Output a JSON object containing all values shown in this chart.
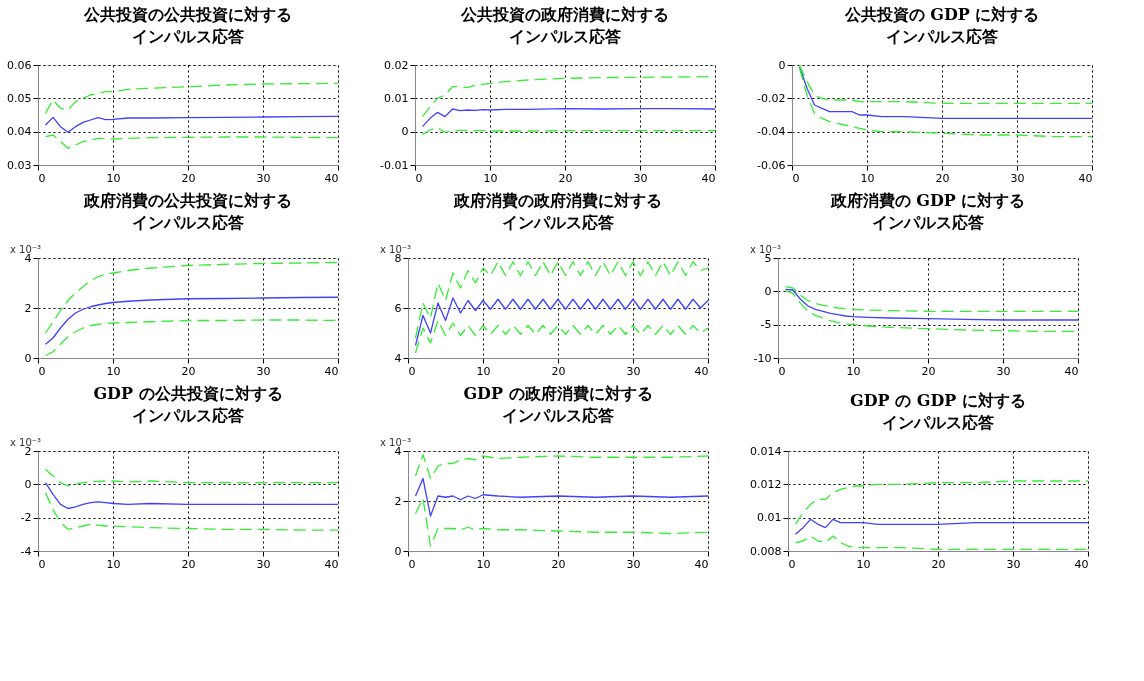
{
  "chart_data": [
    {
      "type": "line",
      "title": "公共投資の公共投資に対するインパルス応答",
      "x": [
        1,
        2,
        3,
        4,
        5,
        6,
        7,
        8,
        9,
        10,
        12,
        15,
        20,
        25,
        30,
        35,
        40
      ],
      "xlim": [
        0,
        40
      ],
      "xticks": [
        0,
        10,
        20,
        30,
        40
      ],
      "ylim": [
        0.03,
        0.06
      ],
      "yticks": [
        0.03,
        0.04,
        0.05,
        0.06
      ],
      "grid": true,
      "series": [
        {
          "color": "#4040ff",
          "line_style": "solid",
          "values": [
            0.042,
            0.0443,
            0.0415,
            0.0398,
            0.0415,
            0.0428,
            0.0435,
            0.0442,
            0.0436,
            0.0437,
            0.0441,
            0.0441,
            0.0442,
            0.0443,
            0.0444,
            0.0445,
            0.0446
          ]
        },
        {
          "color": "#33ee33",
          "line_style": "dashed",
          "values": [
            0.0455,
            0.0495,
            0.047,
            0.0465,
            0.049,
            0.05,
            0.051,
            0.0515,
            0.052,
            0.052,
            0.0527,
            0.053,
            0.0535,
            0.054,
            0.0543,
            0.0544,
            0.0545
          ]
        },
        {
          "color": "#33ee33",
          "line_style": "dashed",
          "values": [
            0.0385,
            0.039,
            0.037,
            0.035,
            0.036,
            0.037,
            0.0375,
            0.038,
            0.038,
            0.0378,
            0.038,
            0.0382,
            0.0383,
            0.0384,
            0.0384,
            0.0383,
            0.0382
          ]
        }
      ]
    },
    {
      "type": "line",
      "title": "公共投資の政府消費に対するインパルス応答",
      "x": [
        1,
        2,
        3,
        4,
        5,
        6,
        7,
        8,
        9,
        10,
        12,
        15,
        20,
        25,
        30,
        35,
        40
      ],
      "xlim": [
        0,
        40
      ],
      "xticks": [
        0,
        10,
        20,
        30,
        40
      ],
      "ylim": [
        -0.01,
        0.02
      ],
      "yticks": [
        -0.01,
        0,
        0.01,
        0.02
      ],
      "grid": true,
      "series": [
        {
          "color": "#4040ff",
          "line_style": "solid",
          "values": [
            0.0015,
            0.004,
            0.0058,
            0.0045,
            0.0068,
            0.0063,
            0.0065,
            0.0064,
            0.0066,
            0.0065,
            0.0067,
            0.0067,
            0.0069,
            0.0068,
            0.0069,
            0.0069,
            0.0068
          ]
        },
        {
          "color": "#33ee33",
          "line_style": "dashed",
          "values": [
            0.0045,
            0.0075,
            0.01,
            0.011,
            0.0135,
            0.0135,
            0.0132,
            0.014,
            0.0142,
            0.0145,
            0.015,
            0.0155,
            0.016,
            0.0162,
            0.0163,
            0.0164,
            0.0165
          ]
        },
        {
          "color": "#33ee33",
          "line_style": "dashed",
          "values": [
            -0.0008,
            0.0005,
            0.0012,
            -0.0002,
            0.0003,
            0.0004,
            0.0004,
            0.0003,
            0.0003,
            0.0002,
            0.0002,
            0.0002,
            0.0003,
            0.0003,
            0.0003,
            0.0003,
            0.0003
          ]
        }
      ]
    },
    {
      "type": "line",
      "title": "公共投資の GDP に対するインパルス応答",
      "x": [
        1,
        2,
        3,
        4,
        5,
        6,
        7,
        8,
        9,
        10,
        12,
        15,
        20,
        25,
        30,
        35,
        40
      ],
      "xlim": [
        0,
        40
      ],
      "xticks": [
        0,
        10,
        20,
        30,
        40
      ],
      "ylim": [
        -0.06,
        0
      ],
      "yticks": [
        -0.06,
        -0.04,
        -0.02,
        0
      ],
      "grid": true,
      "series": [
        {
          "color": "#4040ff",
          "line_style": "solid",
          "values": [
            -0.001,
            -0.014,
            -0.024,
            -0.026,
            -0.028,
            -0.028,
            -0.028,
            -0.028,
            -0.03,
            -0.03,
            -0.031,
            -0.031,
            -0.032,
            -0.032,
            -0.032,
            -0.032,
            -0.032
          ]
        },
        {
          "color": "#33ee33",
          "line_style": "dashed",
          "values": [
            0,
            -0.01,
            -0.018,
            -0.02,
            -0.021,
            -0.021,
            -0.021,
            -0.021,
            -0.022,
            -0.022,
            -0.022,
            -0.022,
            -0.023,
            -0.023,
            -0.023,
            -0.023,
            -0.023
          ]
        },
        {
          "color": "#33ee33",
          "line_style": "dashed",
          "values": [
            -0.002,
            -0.018,
            -0.029,
            -0.032,
            -0.034,
            -0.035,
            -0.036,
            -0.037,
            -0.038,
            -0.039,
            -0.04,
            -0.04,
            -0.041,
            -0.042,
            -0.042,
            -0.043,
            -0.043
          ]
        }
      ]
    },
    {
      "type": "line",
      "title": "政府消費の公共投資に対するインパルス応答",
      "annotations": [
        "x 10⁻³"
      ],
      "x": [
        1,
        2,
        3,
        4,
        5,
        6,
        7,
        8,
        9,
        10,
        12,
        15,
        20,
        25,
        30,
        35,
        40
      ],
      "xlim": [
        0,
        40
      ],
      "xticks": [
        0,
        10,
        20,
        30,
        40
      ],
      "ylim": [
        0,
        4
      ],
      "yticks": [
        0,
        2,
        4
      ],
      "grid": true,
      "series": [
        {
          "color": "#4040ff",
          "line_style": "solid",
          "values": [
            0.55,
            0.8,
            1.2,
            1.55,
            1.8,
            1.95,
            2.05,
            2.12,
            2.18,
            2.22,
            2.27,
            2.32,
            2.37,
            2.38,
            2.4,
            2.42,
            2.43
          ]
        },
        {
          "color": "#33ee33",
          "line_style": "dashed",
          "values": [
            1.0,
            1.45,
            1.9,
            2.3,
            2.6,
            2.85,
            3.1,
            3.25,
            3.35,
            3.4,
            3.5,
            3.6,
            3.7,
            3.75,
            3.78,
            3.8,
            3.82
          ]
        },
        {
          "color": "#33ee33",
          "line_style": "dashed",
          "values": [
            0.1,
            0.25,
            0.55,
            0.85,
            1.05,
            1.2,
            1.3,
            1.35,
            1.38,
            1.4,
            1.42,
            1.45,
            1.5,
            1.5,
            1.52,
            1.52,
            1.5
          ]
        }
      ]
    },
    {
      "type": "line",
      "title": "政府消費の政府消費に対するインパルス応答",
      "annotations": [
        "x 10⁻³"
      ],
      "x": [
        1,
        2,
        3,
        4,
        5,
        6,
        7,
        8,
        9,
        10,
        11,
        12,
        13,
        14,
        15,
        16,
        17,
        18,
        19,
        20,
        21,
        22,
        23,
        24,
        25,
        26,
        27,
        28,
        29,
        30,
        31,
        32,
        33,
        34,
        35,
        36,
        37,
        38,
        39,
        40
      ],
      "xlim": [
        0,
        40
      ],
      "xticks": [
        0,
        10,
        20,
        30,
        40
      ],
      "ylim": [
        4,
        8
      ],
      "yticks": [
        4,
        6,
        8
      ],
      "grid": true,
      "series": [
        {
          "color": "#4040ff",
          "line_style": "solid",
          "values": [
            4.5,
            5.7,
            5.0,
            6.2,
            5.5,
            6.4,
            5.8,
            6.3,
            5.9,
            6.3,
            5.95,
            6.35,
            5.95,
            6.35,
            5.95,
            6.35,
            5.95,
            6.35,
            5.95,
            6.35,
            5.95,
            6.35,
            5.95,
            6.35,
            5.95,
            6.35,
            5.95,
            6.35,
            5.95,
            6.35,
            5.95,
            6.35,
            5.95,
            6.35,
            5.95,
            6.35,
            5.95,
            6.35,
            6.0,
            6.3
          ]
        },
        {
          "color": "#33ee33",
          "line_style": "dashed",
          "values": [
            4.8,
            6.2,
            5.6,
            7.0,
            6.3,
            7.4,
            6.8,
            7.5,
            7.0,
            7.6,
            7.3,
            7.85,
            7.3,
            7.85,
            7.3,
            7.85,
            7.3,
            7.85,
            7.3,
            7.85,
            7.3,
            7.85,
            7.3,
            7.85,
            7.3,
            7.85,
            7.3,
            7.85,
            7.3,
            7.85,
            7.3,
            7.85,
            7.3,
            7.85,
            7.3,
            7.85,
            7.3,
            7.85,
            7.5,
            7.6
          ]
        },
        {
          "color": "#33ee33",
          "line_style": "dashed",
          "values": [
            4.2,
            5.2,
            4.6,
            5.5,
            4.9,
            5.4,
            4.9,
            5.3,
            4.9,
            5.3,
            4.95,
            5.3,
            4.95,
            5.3,
            4.95,
            5.3,
            4.95,
            5.3,
            4.95,
            5.3,
            4.95,
            5.3,
            4.95,
            5.3,
            4.95,
            5.3,
            4.95,
            5.3,
            4.95,
            5.3,
            4.95,
            5.3,
            4.95,
            5.3,
            4.95,
            5.3,
            4.95,
            5.3,
            5.0,
            5.2
          ]
        }
      ]
    },
    {
      "type": "line",
      "title": "政府消費の GDP に対するインパルス応答",
      "annotations": [
        "x 10⁻³"
      ],
      "x": [
        1,
        2,
        3,
        4,
        5,
        6,
        7,
        8,
        9,
        10,
        12,
        15,
        20,
        25,
        30,
        35,
        40
      ],
      "xlim": [
        0,
        40
      ],
      "xticks": [
        0,
        10,
        20,
        30,
        40
      ],
      "ylim": [
        -10,
        5
      ],
      "yticks": [
        -10,
        -5,
        0,
        5
      ],
      "grid": true,
      "series": [
        {
          "color": "#4040ff",
          "line_style": "solid",
          "values": [
            0.3,
            0.2,
            -1.2,
            -2.2,
            -2.7,
            -3.0,
            -3.3,
            -3.5,
            -3.7,
            -3.8,
            -3.9,
            -4.0,
            -4.1,
            -4.2,
            -4.3,
            -4.3,
            -4.3
          ]
        },
        {
          "color": "#33ee33",
          "line_style": "dashed",
          "values": [
            0.7,
            0.5,
            -0.6,
            -1.4,
            -1.8,
            -2.1,
            -2.3,
            -2.5,
            -2.6,
            -2.7,
            -2.8,
            -2.9,
            -3.0,
            -3.0,
            -3.0,
            -3.0,
            -3.0
          ]
        },
        {
          "color": "#33ee33",
          "line_style": "dashed",
          "values": [
            0.1,
            -0.3,
            -1.8,
            -3.0,
            -3.6,
            -4.0,
            -4.4,
            -4.7,
            -4.9,
            -5.0,
            -5.2,
            -5.4,
            -5.6,
            -5.8,
            -5.9,
            -6.0,
            -6.0
          ]
        }
      ]
    },
    {
      "type": "line",
      "title": "GDP の公共投資に対するインパルス応答",
      "annotations": [
        "x 10⁻³"
      ],
      "x": [
        1,
        2,
        3,
        4,
        5,
        6,
        7,
        8,
        9,
        10,
        12,
        15,
        20,
        25,
        30,
        35,
        40
      ],
      "xlim": [
        0,
        40
      ],
      "xticks": [
        0,
        10,
        20,
        30,
        40
      ],
      "ylim": [
        -4,
        2
      ],
      "yticks": [
        -4,
        -2,
        0,
        2
      ],
      "grid": true,
      "series": [
        {
          "color": "#4040ff",
          "line_style": "solid",
          "values": [
            0.1,
            -0.6,
            -1.2,
            -1.45,
            -1.35,
            -1.2,
            -1.1,
            -1.05,
            -1.1,
            -1.15,
            -1.2,
            -1.15,
            -1.2,
            -1.2,
            -1.2,
            -1.2,
            -1.2
          ]
        },
        {
          "color": "#33ee33",
          "line_style": "dashed",
          "values": [
            0.9,
            0.5,
            0.1,
            -0.1,
            0.0,
            0.1,
            0.15,
            0.18,
            0.2,
            0.2,
            0.15,
            0.2,
            0.1,
            0.1,
            0.1,
            0.1,
            0.1
          ]
        },
        {
          "color": "#33ee33",
          "line_style": "dashed",
          "values": [
            -0.5,
            -1.5,
            -2.3,
            -2.7,
            -2.6,
            -2.5,
            -2.4,
            -2.45,
            -2.5,
            -2.5,
            -2.55,
            -2.6,
            -2.65,
            -2.7,
            -2.7,
            -2.75,
            -2.75
          ]
        }
      ]
    },
    {
      "type": "line",
      "title": "GDP の政府消費に対するインパルス応答",
      "annotations": [
        "x 10⁻³"
      ],
      "x": [
        1,
        2,
        3,
        4,
        5,
        6,
        7,
        8,
        9,
        10,
        12,
        15,
        20,
        25,
        30,
        35,
        40
      ],
      "xlim": [
        0,
        40
      ],
      "xticks": [
        0,
        10,
        20,
        30,
        40
      ],
      "ylim": [
        0,
        4
      ],
      "yticks": [
        0,
        2,
        4
      ],
      "grid": true,
      "series": [
        {
          "color": "#4040ff",
          "line_style": "solid",
          "values": [
            2.2,
            2.9,
            1.4,
            2.2,
            2.15,
            2.2,
            2.05,
            2.2,
            2.1,
            2.25,
            2.2,
            2.15,
            2.2,
            2.15,
            2.2,
            2.15,
            2.2
          ]
        },
        {
          "color": "#33ee33",
          "line_style": "dashed",
          "values": [
            3.0,
            3.85,
            2.9,
            3.4,
            3.5,
            3.5,
            3.65,
            3.7,
            3.65,
            3.8,
            3.7,
            3.75,
            3.8,
            3.75,
            3.75,
            3.75,
            3.8
          ]
        },
        {
          "color": "#33ee33",
          "line_style": "dashed",
          "values": [
            1.5,
            2.1,
            0.2,
            0.9,
            0.9,
            0.9,
            0.85,
            0.95,
            0.85,
            0.9,
            0.85,
            0.85,
            0.8,
            0.75,
            0.75,
            0.7,
            0.75
          ]
        }
      ]
    },
    {
      "type": "line",
      "title": "GDP の GDP に対するインパルス応答",
      "x": [
        1,
        2,
        3,
        4,
        5,
        6,
        7,
        8,
        9,
        10,
        12,
        15,
        20,
        25,
        30,
        35,
        40
      ],
      "xlim": [
        0,
        40
      ],
      "xticks": [
        0,
        10,
        20,
        30,
        40
      ],
      "ylim": [
        0.008,
        0.014
      ],
      "yticks": [
        0.008,
        0.01,
        0.012,
        0.014
      ],
      "grid": true,
      "series": [
        {
          "color": "#4040ff",
          "line_style": "solid",
          "values": [
            0.009,
            0.0094,
            0.0099,
            0.0096,
            0.0094,
            0.0099,
            0.0097,
            0.0097,
            0.0097,
            0.0097,
            0.0096,
            0.0096,
            0.0096,
            0.0097,
            0.0097,
            0.0097,
            0.0097
          ]
        },
        {
          "color": "#33ee33",
          "line_style": "dashed",
          "values": [
            0.0096,
            0.0103,
            0.0108,
            0.0111,
            0.0111,
            0.0115,
            0.0117,
            0.0118,
            0.0119,
            0.0119,
            0.012,
            0.012,
            0.0121,
            0.0121,
            0.0122,
            0.0122,
            0.0122
          ]
        },
        {
          "color": "#33ee33",
          "line_style": "dashed",
          "values": [
            0.0085,
            0.0086,
            0.0089,
            0.0086,
            0.0085,
            0.0089,
            0.0085,
            0.0083,
            0.0082,
            0.0082,
            0.0082,
            0.0082,
            0.0081,
            0.0081,
            0.0081,
            0.0081,
            0.0081
          ]
        }
      ]
    }
  ]
}
